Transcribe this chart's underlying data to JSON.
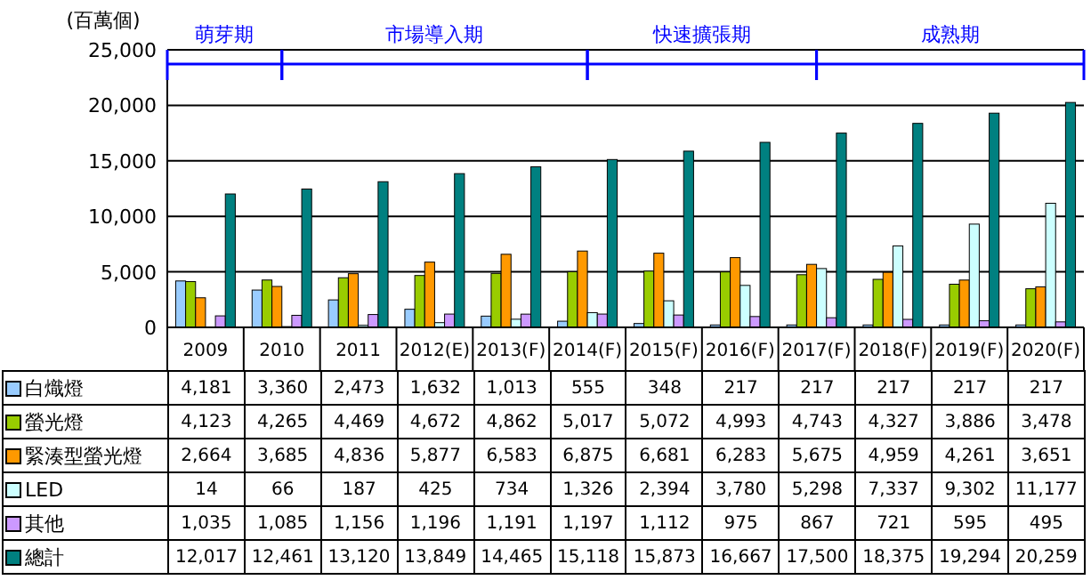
{
  "chart_data": {
    "type": "bar",
    "ylabel": "(百萬個)",
    "categories": [
      "2009",
      "2010",
      "2011",
      "2012(E)",
      "2013(F)",
      "2014(F)",
      "2015(F)",
      "2016(F)",
      "2017(F)",
      "2018(F)",
      "2019(F)",
      "2020(F)"
    ],
    "series": [
      {
        "name": "白熾燈",
        "color": "#99ccff",
        "values": [
          4181,
          3360,
          2473,
          1632,
          1013,
          555,
          348,
          217,
          217,
          217,
          217,
          217
        ],
        "value_labels": [
          "4,181",
          "3,360",
          "2,473",
          "1,632",
          "1,013",
          "555",
          "348",
          "217",
          "217",
          "217",
          "217",
          "217"
        ]
      },
      {
        "name": "螢光燈",
        "color": "#99cc00",
        "values": [
          4123,
          4265,
          4469,
          4672,
          4862,
          5017,
          5072,
          4993,
          4743,
          4327,
          3886,
          3478
        ],
        "value_labels": [
          "4,123",
          "4,265",
          "4,469",
          "4,672",
          "4,862",
          "5,017",
          "5,072",
          "4,993",
          "4,743",
          "4,327",
          "3,886",
          "3,478"
        ]
      },
      {
        "name": "緊湊型螢光燈",
        "color": "#ff9900",
        "values": [
          2664,
          3685,
          4836,
          5877,
          6583,
          6875,
          6681,
          6283,
          5675,
          4959,
          4261,
          3651
        ],
        "value_labels": [
          "2,664",
          "3,685",
          "4,836",
          "5,877",
          "6,583",
          "6,875",
          "6,681",
          "6,283",
          "5,675",
          "4,959",
          "4,261",
          "3,651"
        ]
      },
      {
        "name": "LED",
        "color": "#ccffff",
        "values": [
          14,
          66,
          187,
          425,
          734,
          1326,
          2394,
          3780,
          5298,
          7337,
          9302,
          11177
        ],
        "value_labels": [
          "14",
          "66",
          "187",
          "425",
          "734",
          "1,326",
          "2,394",
          "3,780",
          "5,298",
          "7,337",
          "9,302",
          "11,177"
        ]
      },
      {
        "name": "其他",
        "color": "#cc99ff",
        "values": [
          1035,
          1085,
          1156,
          1196,
          1191,
          1197,
          1112,
          975,
          867,
          721,
          595,
          495
        ],
        "value_labels": [
          "1,035",
          "1,085",
          "1,156",
          "1,196",
          "1,191",
          "1,197",
          "1,112",
          "975",
          "867",
          "721",
          "595",
          "495"
        ]
      },
      {
        "name": "總計",
        "color": "#008080",
        "values": [
          12017,
          12461,
          13120,
          13849,
          14465,
          15118,
          15873,
          16667,
          17500,
          18375,
          19294,
          20259
        ],
        "value_labels": [
          "12,017",
          "12,461",
          "13,120",
          "13,849",
          "14,465",
          "15,118",
          "15,873",
          "16,667",
          "17,500",
          "18,375",
          "19,294",
          "20,259"
        ]
      }
    ],
    "ylim": [
      0,
      25000
    ],
    "yticks": [
      0,
      {
        "value": 5000,
        "label": "5,000"
      },
      {
        "value": 10000,
        "label": "10,000"
      },
      {
        "value": 15000,
        "label": "15,000"
      },
      {
        "value": 20000,
        "label": "20,000"
      },
      {
        "value": 25000,
        "label": "25,000"
      }
    ],
    "annotations": [
      "萌芽期",
      "市場導入期",
      "快速擴張期",
      "成熟期"
    ],
    "grid": "y",
    "legend": "left"
  }
}
